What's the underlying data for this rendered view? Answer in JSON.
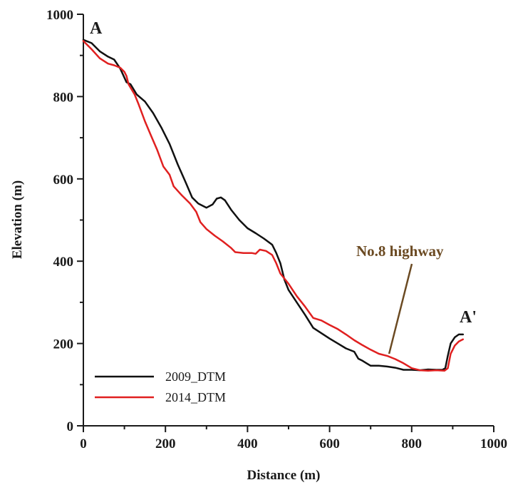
{
  "chart_data": {
    "type": "line",
    "title": "",
    "xlabel": "Distance (m)",
    "ylabel": "Elevation (m)",
    "xlim": [
      0,
      1000
    ],
    "ylim": [
      0,
      1000
    ],
    "x_ticks": [
      0,
      200,
      400,
      600,
      800,
      1000
    ],
    "y_ticks": [
      0,
      200,
      400,
      600,
      800,
      1000
    ],
    "grid": false,
    "legend_position": "bottom-left",
    "annotations": {
      "start": "A",
      "end": "A'",
      "feature": "No.8 highway",
      "feature_point": [
        745,
        175
      ]
    },
    "colors": {
      "annotation": "#6b4a22",
      "axis": "#1a1a1a"
    },
    "series": [
      {
        "name": "2009_DTM",
        "color": "#111111",
        "points": [
          [
            0,
            938
          ],
          [
            20,
            930
          ],
          [
            40,
            910
          ],
          [
            60,
            897
          ],
          [
            75,
            890
          ],
          [
            90,
            868
          ],
          [
            105,
            835
          ],
          [
            115,
            830
          ],
          [
            130,
            805
          ],
          [
            150,
            788
          ],
          [
            170,
            760
          ],
          [
            190,
            725
          ],
          [
            210,
            685
          ],
          [
            230,
            635
          ],
          [
            250,
            590
          ],
          [
            265,
            555
          ],
          [
            280,
            540
          ],
          [
            300,
            530
          ],
          [
            315,
            538
          ],
          [
            325,
            552
          ],
          [
            335,
            555
          ],
          [
            345,
            548
          ],
          [
            360,
            525
          ],
          [
            380,
            500
          ],
          [
            400,
            480
          ],
          [
            420,
            468
          ],
          [
            440,
            455
          ],
          [
            460,
            440
          ],
          [
            470,
            420
          ],
          [
            480,
            395
          ],
          [
            490,
            355
          ],
          [
            500,
            330
          ],
          [
            520,
            300
          ],
          [
            540,
            270
          ],
          [
            560,
            238
          ],
          [
            580,
            225
          ],
          [
            600,
            212
          ],
          [
            620,
            200
          ],
          [
            640,
            188
          ],
          [
            660,
            180
          ],
          [
            670,
            163
          ],
          [
            680,
            158
          ],
          [
            690,
            152
          ],
          [
            700,
            146
          ],
          [
            720,
            146
          ],
          [
            740,
            144
          ],
          [
            760,
            141
          ],
          [
            780,
            136
          ],
          [
            800,
            136
          ],
          [
            820,
            135
          ],
          [
            840,
            137
          ],
          [
            860,
            136
          ],
          [
            875,
            136
          ],
          [
            882,
            140
          ],
          [
            888,
            170
          ],
          [
            895,
            200
          ],
          [
            905,
            215
          ],
          [
            915,
            222
          ],
          [
            925,
            222
          ]
        ]
      },
      {
        "name": "2014_DTM",
        "color": "#e02020",
        "points": [
          [
            0,
            935
          ],
          [
            20,
            915
          ],
          [
            40,
            893
          ],
          [
            60,
            880
          ],
          [
            75,
            876
          ],
          [
            90,
            870
          ],
          [
            100,
            860
          ],
          [
            105,
            850
          ],
          [
            110,
            830
          ],
          [
            125,
            805
          ],
          [
            135,
            780
          ],
          [
            150,
            740
          ],
          [
            165,
            705
          ],
          [
            180,
            670
          ],
          [
            195,
            630
          ],
          [
            210,
            610
          ],
          [
            220,
            582
          ],
          [
            240,
            560
          ],
          [
            260,
            540
          ],
          [
            275,
            520
          ],
          [
            285,
            495
          ],
          [
            300,
            478
          ],
          [
            320,
            462
          ],
          [
            340,
            448
          ],
          [
            360,
            432
          ],
          [
            370,
            422
          ],
          [
            390,
            420
          ],
          [
            410,
            420
          ],
          [
            420,
            418
          ],
          [
            430,
            428
          ],
          [
            445,
            425
          ],
          [
            460,
            415
          ],
          [
            470,
            395
          ],
          [
            480,
            370
          ],
          [
            500,
            345
          ],
          [
            520,
            315
          ],
          [
            540,
            290
          ],
          [
            560,
            262
          ],
          [
            580,
            256
          ],
          [
            600,
            245
          ],
          [
            620,
            235
          ],
          [
            640,
            222
          ],
          [
            660,
            208
          ],
          [
            680,
            196
          ],
          [
            700,
            185
          ],
          [
            720,
            175
          ],
          [
            740,
            170
          ],
          [
            760,
            162
          ],
          [
            780,
            152
          ],
          [
            800,
            140
          ],
          [
            820,
            135
          ],
          [
            840,
            134
          ],
          [
            860,
            135
          ],
          [
            880,
            134
          ],
          [
            888,
            140
          ],
          [
            895,
            175
          ],
          [
            905,
            195
          ],
          [
            915,
            205
          ],
          [
            925,
            210
          ]
        ]
      }
    ]
  }
}
